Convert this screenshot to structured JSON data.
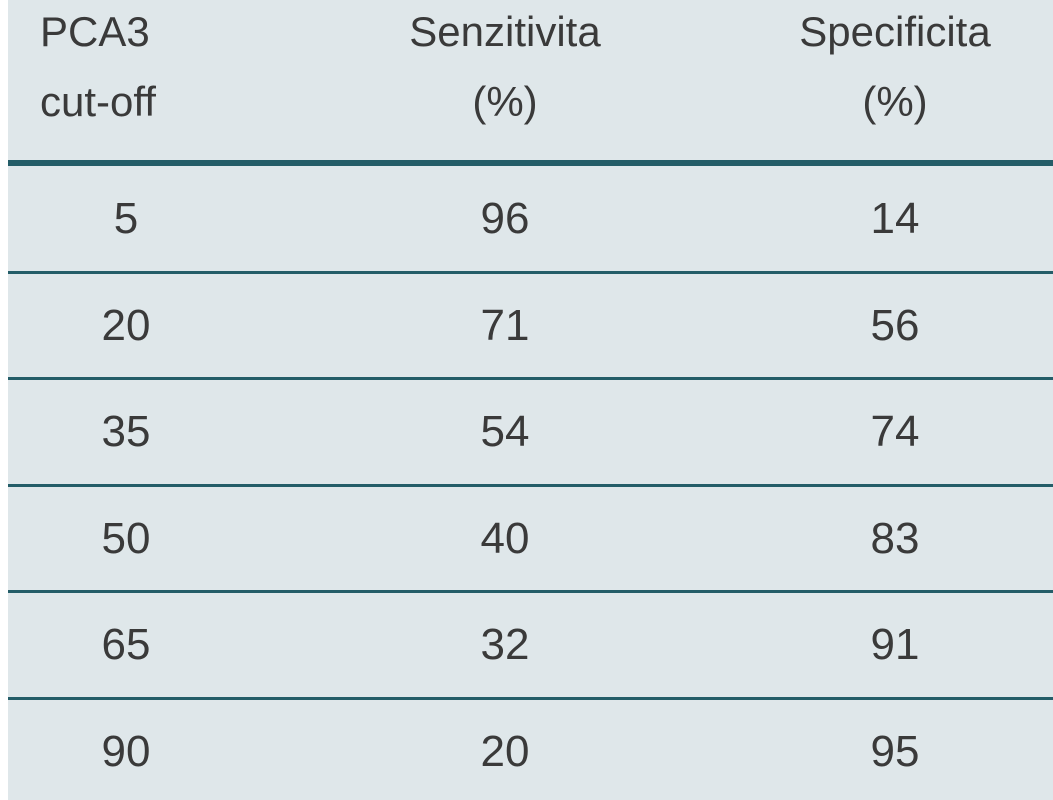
{
  "table": {
    "header": [
      [
        "PCA3",
        "cut-off"
      ],
      [
        "Senzitivita",
        "(%)"
      ],
      [
        "Specificita",
        "(%)"
      ]
    ],
    "rows": [
      [
        5,
        96,
        14
      ],
      [
        20,
        71,
        56
      ],
      [
        35,
        54,
        74
      ],
      [
        50,
        40,
        83
      ],
      [
        65,
        32,
        91
      ],
      [
        90,
        20,
        95
      ]
    ]
  }
}
